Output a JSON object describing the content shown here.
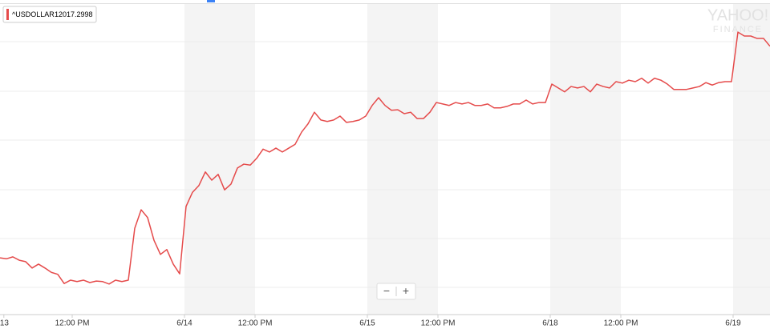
{
  "chart_data": {
    "type": "line",
    "watermark": [
      "YAHOO!",
      "FINANCE"
    ],
    "zoom_controls": [
      "−",
      "+"
    ],
    "xlim": [
      0,
      120
    ],
    "ylim": [
      11962,
      12026
    ],
    "xticks": [
      {
        "value": 0.6,
        "label": "13"
      },
      {
        "value": 11.25,
        "label": "12:00 PM"
      },
      {
        "value": 28.75,
        "label": "6/14"
      },
      {
        "value": 39.75,
        "label": "12:00 PM"
      },
      {
        "value": 57.25,
        "label": "6/15"
      },
      {
        "value": 68.25,
        "label": "12:00 PM"
      },
      {
        "value": 85.75,
        "label": "6/18"
      },
      {
        "value": 96.75,
        "label": "12:00 PM"
      },
      {
        "value": 114.25,
        "label": "6/19"
      }
    ],
    "grid": true,
    "series": [
      {
        "name": "^USDOLLAR",
        "color": "#e54b4b",
        "values": [
          11973.7,
          11973.5,
          11973.9,
          11973.2,
          11972.9,
          11971.6,
          11972.4,
          11971.6,
          11970.7,
          11970.3,
          11968.4,
          11969.1,
          11968.8,
          11969.1,
          11968.6,
          11968.9,
          11968.8,
          11968.3,
          11969.1,
          11968.8,
          11969.1,
          11979.8,
          11983.6,
          11982.0,
          11977.3,
          11974.4,
          11975.4,
          11972.4,
          11970.4,
          11984.3,
          11987.2,
          11988.6,
          11991.4,
          11989.7,
          11990.9,
          11987.7,
          11988.9,
          11992.2,
          11993.0,
          11992.8,
          11994.2,
          11996.1,
          11995.5,
          11996.3,
          11995.5,
          11996.3,
          11997.1,
          11999.6,
          12001.3,
          12003.7,
          12002.1,
          12001.8,
          12002.1,
          12002.9,
          12001.6,
          12001.8,
          12002.1,
          12002.9,
          12005.1,
          12006.7,
          12005.1,
          12004.1,
          12004.2,
          12003.4,
          12003.7,
          12002.4,
          12002.4,
          12003.7,
          12005.7,
          12005.4,
          12005.1,
          12005.7,
          12005.4,
          12005.7,
          12005.1,
          12005.1,
          12005.4,
          12004.6,
          12004.6,
          12004.9,
          12005.4,
          12005.4,
          12006.2,
          12005.4,
          12005.7,
          12005.7,
          12009.5,
          12008.7,
          12007.9,
          12009.0,
          12008.7,
          12009.0,
          12007.9,
          12009.5,
          12009.0,
          12008.7,
          12010.0,
          12009.7,
          12010.3,
          12010.0,
          12010.7,
          12009.7,
          12010.7,
          12010.3,
          12009.5,
          12008.4,
          12008.4,
          12008.4,
          12008.7,
          12009.0,
          12009.8,
          12009.3,
          12009.8,
          12010.0,
          12010.0,
          12020.2,
          12019.4,
          12019.4,
          12018.9,
          12018.9,
          12017.2998
        ]
      }
    ]
  }
}
